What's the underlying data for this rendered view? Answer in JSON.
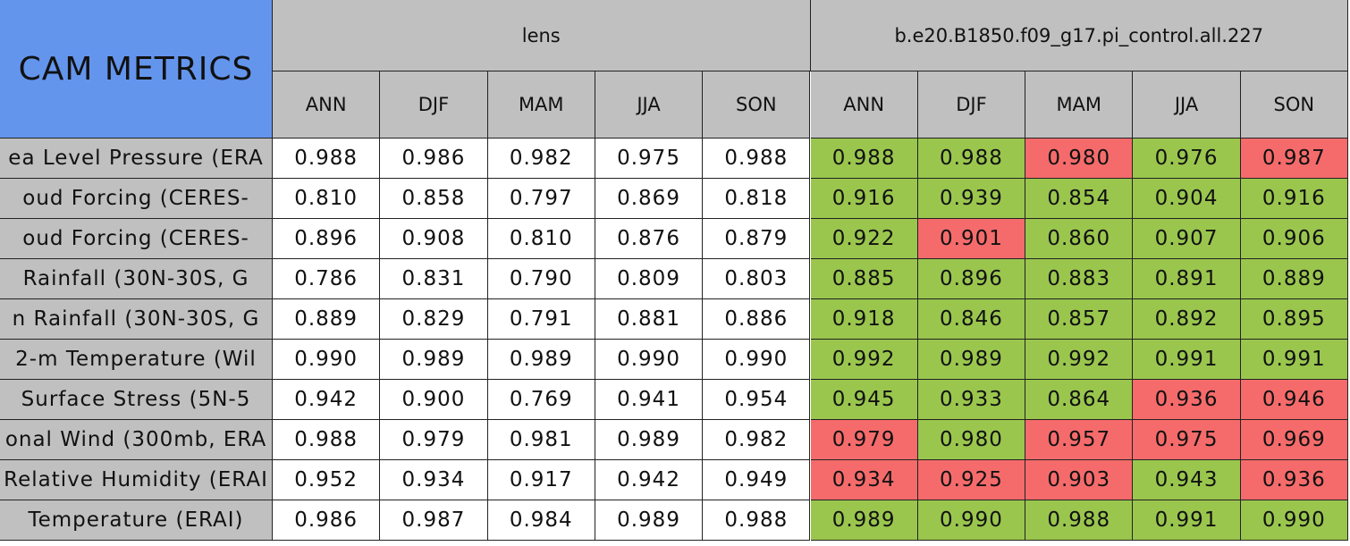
{
  "table": {
    "title": "CAM METRICS",
    "groups": [
      "lens",
      "b.e20.B1850.f09_g17.pi_control.all.227"
    ],
    "seasons": [
      "ANN",
      "DJF",
      "MAM",
      "JJA",
      "SON"
    ],
    "colors": {
      "G": "#9ac64e",
      "R": "#f56b6b"
    },
    "rows": [
      {
        "label": "ea Level Pressure (ERA",
        "values": [
          "0.988",
          "0.986",
          "0.982",
          "0.975",
          "0.988",
          "0.988",
          "0.988",
          "0.980",
          "0.976",
          "0.987"
        ],
        "marks": [
          "G",
          "G",
          "R",
          "G",
          "R"
        ]
      },
      {
        "label": "oud Forcing (CERES-",
        "values": [
          "0.810",
          "0.858",
          "0.797",
          "0.869",
          "0.818",
          "0.916",
          "0.939",
          "0.854",
          "0.904",
          "0.916"
        ],
        "marks": [
          "G",
          "G",
          "G",
          "G",
          "G"
        ]
      },
      {
        "label": "oud Forcing (CERES-",
        "values": [
          "0.896",
          "0.908",
          "0.810",
          "0.876",
          "0.879",
          "0.922",
          "0.901",
          "0.860",
          "0.907",
          "0.906"
        ],
        "marks": [
          "G",
          "R",
          "G",
          "G",
          "G"
        ]
      },
      {
        "label": "Rainfall (30N-30S, G",
        "values": [
          "0.786",
          "0.831",
          "0.790",
          "0.809",
          "0.803",
          "0.885",
          "0.896",
          "0.883",
          "0.891",
          "0.889"
        ],
        "marks": [
          "G",
          "G",
          "G",
          "G",
          "G"
        ]
      },
      {
        "label": "n Rainfall (30N-30S, G",
        "values": [
          "0.889",
          "0.829",
          "0.791",
          "0.881",
          "0.886",
          "0.918",
          "0.846",
          "0.857",
          "0.892",
          "0.895"
        ],
        "marks": [
          "G",
          "G",
          "G",
          "G",
          "G"
        ]
      },
      {
        "label": "2-m Temperature (Wil",
        "values": [
          "0.990",
          "0.989",
          "0.989",
          "0.990",
          "0.990",
          "0.992",
          "0.989",
          "0.992",
          "0.991",
          "0.991"
        ],
        "marks": [
          "G",
          "G",
          "G",
          "G",
          "G"
        ]
      },
      {
        "label": "Surface Stress (5N-5",
        "values": [
          "0.942",
          "0.900",
          "0.769",
          "0.941",
          "0.954",
          "0.945",
          "0.933",
          "0.864",
          "0.936",
          "0.946"
        ],
        "marks": [
          "G",
          "G",
          "G",
          "R",
          "R"
        ]
      },
      {
        "label": "onal Wind (300mb, ERA",
        "values": [
          "0.988",
          "0.979",
          "0.981",
          "0.989",
          "0.982",
          "0.979",
          "0.980",
          "0.957",
          "0.975",
          "0.969"
        ],
        "marks": [
          "R",
          "G",
          "R",
          "R",
          "R"
        ]
      },
      {
        "label": "Relative Humidity (ERAI",
        "values": [
          "0.952",
          "0.934",
          "0.917",
          "0.942",
          "0.949",
          "0.934",
          "0.925",
          "0.903",
          "0.943",
          "0.936"
        ],
        "marks": [
          "R",
          "R",
          "R",
          "G",
          "R"
        ]
      },
      {
        "label": "Temperature (ERAI)",
        "values": [
          "0.986",
          "0.987",
          "0.984",
          "0.989",
          "0.988",
          "0.989",
          "0.990",
          "0.988",
          "0.991",
          "0.990"
        ],
        "marks": [
          "G",
          "G",
          "G",
          "G",
          "G"
        ]
      }
    ]
  }
}
